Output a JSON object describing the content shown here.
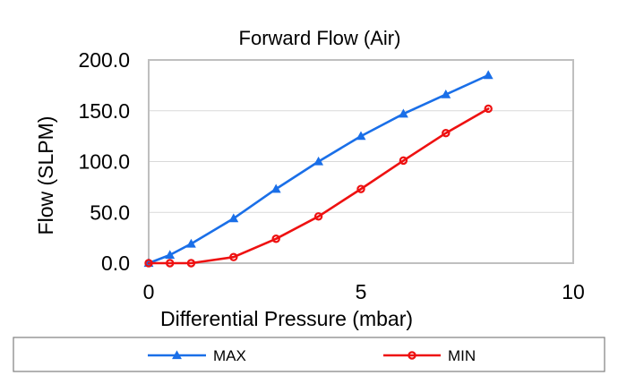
{
  "chart_data": {
    "type": "line",
    "title": "Forward Flow (Air)",
    "xlabel": "Differential Pressure (mbar)",
    "ylabel": "Flow (SLPM)",
    "xlim": [
      0,
      10
    ],
    "ylim": [
      0,
      200
    ],
    "x_ticks": [
      0,
      5,
      10
    ],
    "y_ticks": [
      "0.0",
      "50.0",
      "100.0",
      "150.0",
      "200.0"
    ],
    "grid": "horizontal",
    "legend_position": "bottom",
    "series": [
      {
        "name": "MAX",
        "color": "#1a6fe8",
        "marker": "triangle",
        "x": [
          0,
          0.5,
          1,
          2,
          3,
          4,
          5,
          6,
          7,
          8
        ],
        "y": [
          0,
          8,
          19,
          44,
          73,
          100,
          125,
          147,
          166,
          185
        ]
      },
      {
        "name": "MIN",
        "color": "#ee1111",
        "marker": "circle",
        "x": [
          0,
          0.5,
          1,
          2,
          3,
          4,
          5,
          6,
          7,
          8
        ],
        "y": [
          0,
          0,
          0,
          6,
          24,
          46,
          73,
          101,
          128,
          152
        ]
      }
    ]
  }
}
